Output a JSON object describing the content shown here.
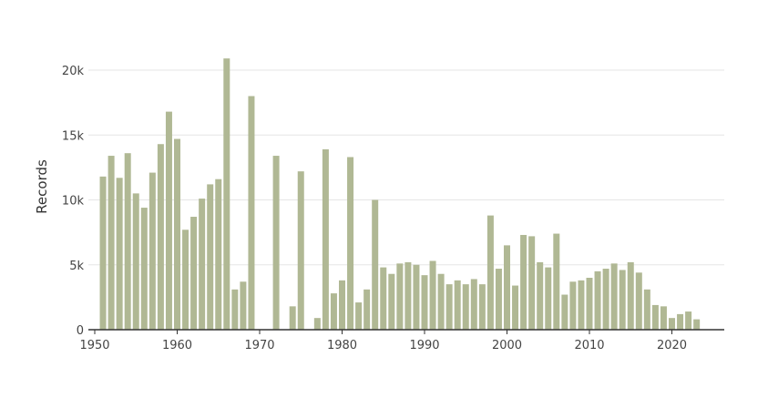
{
  "chart_data": {
    "type": "bar",
    "ylabel": "Records",
    "xlabel": "",
    "ylim": [
      0,
      22000
    ],
    "xlim": [
      1950,
      2026
    ],
    "grid": true,
    "bar_color": "#b0b894",
    "x_ticks": [
      1950,
      1960,
      1970,
      1980,
      1990,
      2000,
      2010,
      2020
    ],
    "x_tick_labels": [
      "1950",
      "1960",
      "1970",
      "1980",
      "1990",
      "2000",
      "2010",
      "2020"
    ],
    "y_ticks": [
      0,
      5000,
      10000,
      15000,
      20000
    ],
    "y_tick_labels": [
      "0",
      "5k",
      "10k",
      "15k",
      "20k"
    ],
    "years": [
      1951,
      1952,
      1953,
      1954,
      1955,
      1956,
      1957,
      1958,
      1959,
      1960,
      1961,
      1962,
      1963,
      1964,
      1965,
      1966,
      1967,
      1968,
      1969,
      1970,
      1971,
      1972,
      1973,
      1974,
      1975,
      1976,
      1977,
      1978,
      1979,
      1980,
      1981,
      1982,
      1983,
      1984,
      1985,
      1986,
      1987,
      1988,
      1989,
      1990,
      1991,
      1992,
      1993,
      1994,
      1995,
      1996,
      1997,
      1998,
      1999,
      2000,
      2001,
      2002,
      2003,
      2004,
      2005,
      2006,
      2007,
      2008,
      2009,
      2010,
      2011,
      2012,
      2013,
      2014,
      2015,
      2016,
      2017,
      2018,
      2019,
      2020,
      2021,
      2022,
      2023
    ],
    "values": [
      11800,
      13400,
      11700,
      13600,
      10500,
      9400,
      12100,
      14300,
      16800,
      14700,
      7700,
      8700,
      10100,
      11200,
      11600,
      20900,
      3100,
      3700,
      18000,
      0,
      0,
      13400,
      0,
      1800,
      12200,
      0,
      900,
      13900,
      2800,
      3800,
      13300,
      2100,
      3100,
      10000,
      4800,
      4300,
      5100,
      5200,
      5000,
      4200,
      5300,
      4300,
      3500,
      3800,
      3500,
      3900,
      3500,
      8800,
      4700,
      6500,
      3400,
      7300,
      7200,
      5200,
      4800,
      7400,
      2700,
      3700,
      3800,
      4000,
      4500,
      4700,
      5100,
      4600,
      5200,
      4400,
      3100,
      1900,
      1800,
      900,
      1200,
      1400,
      800
    ]
  }
}
